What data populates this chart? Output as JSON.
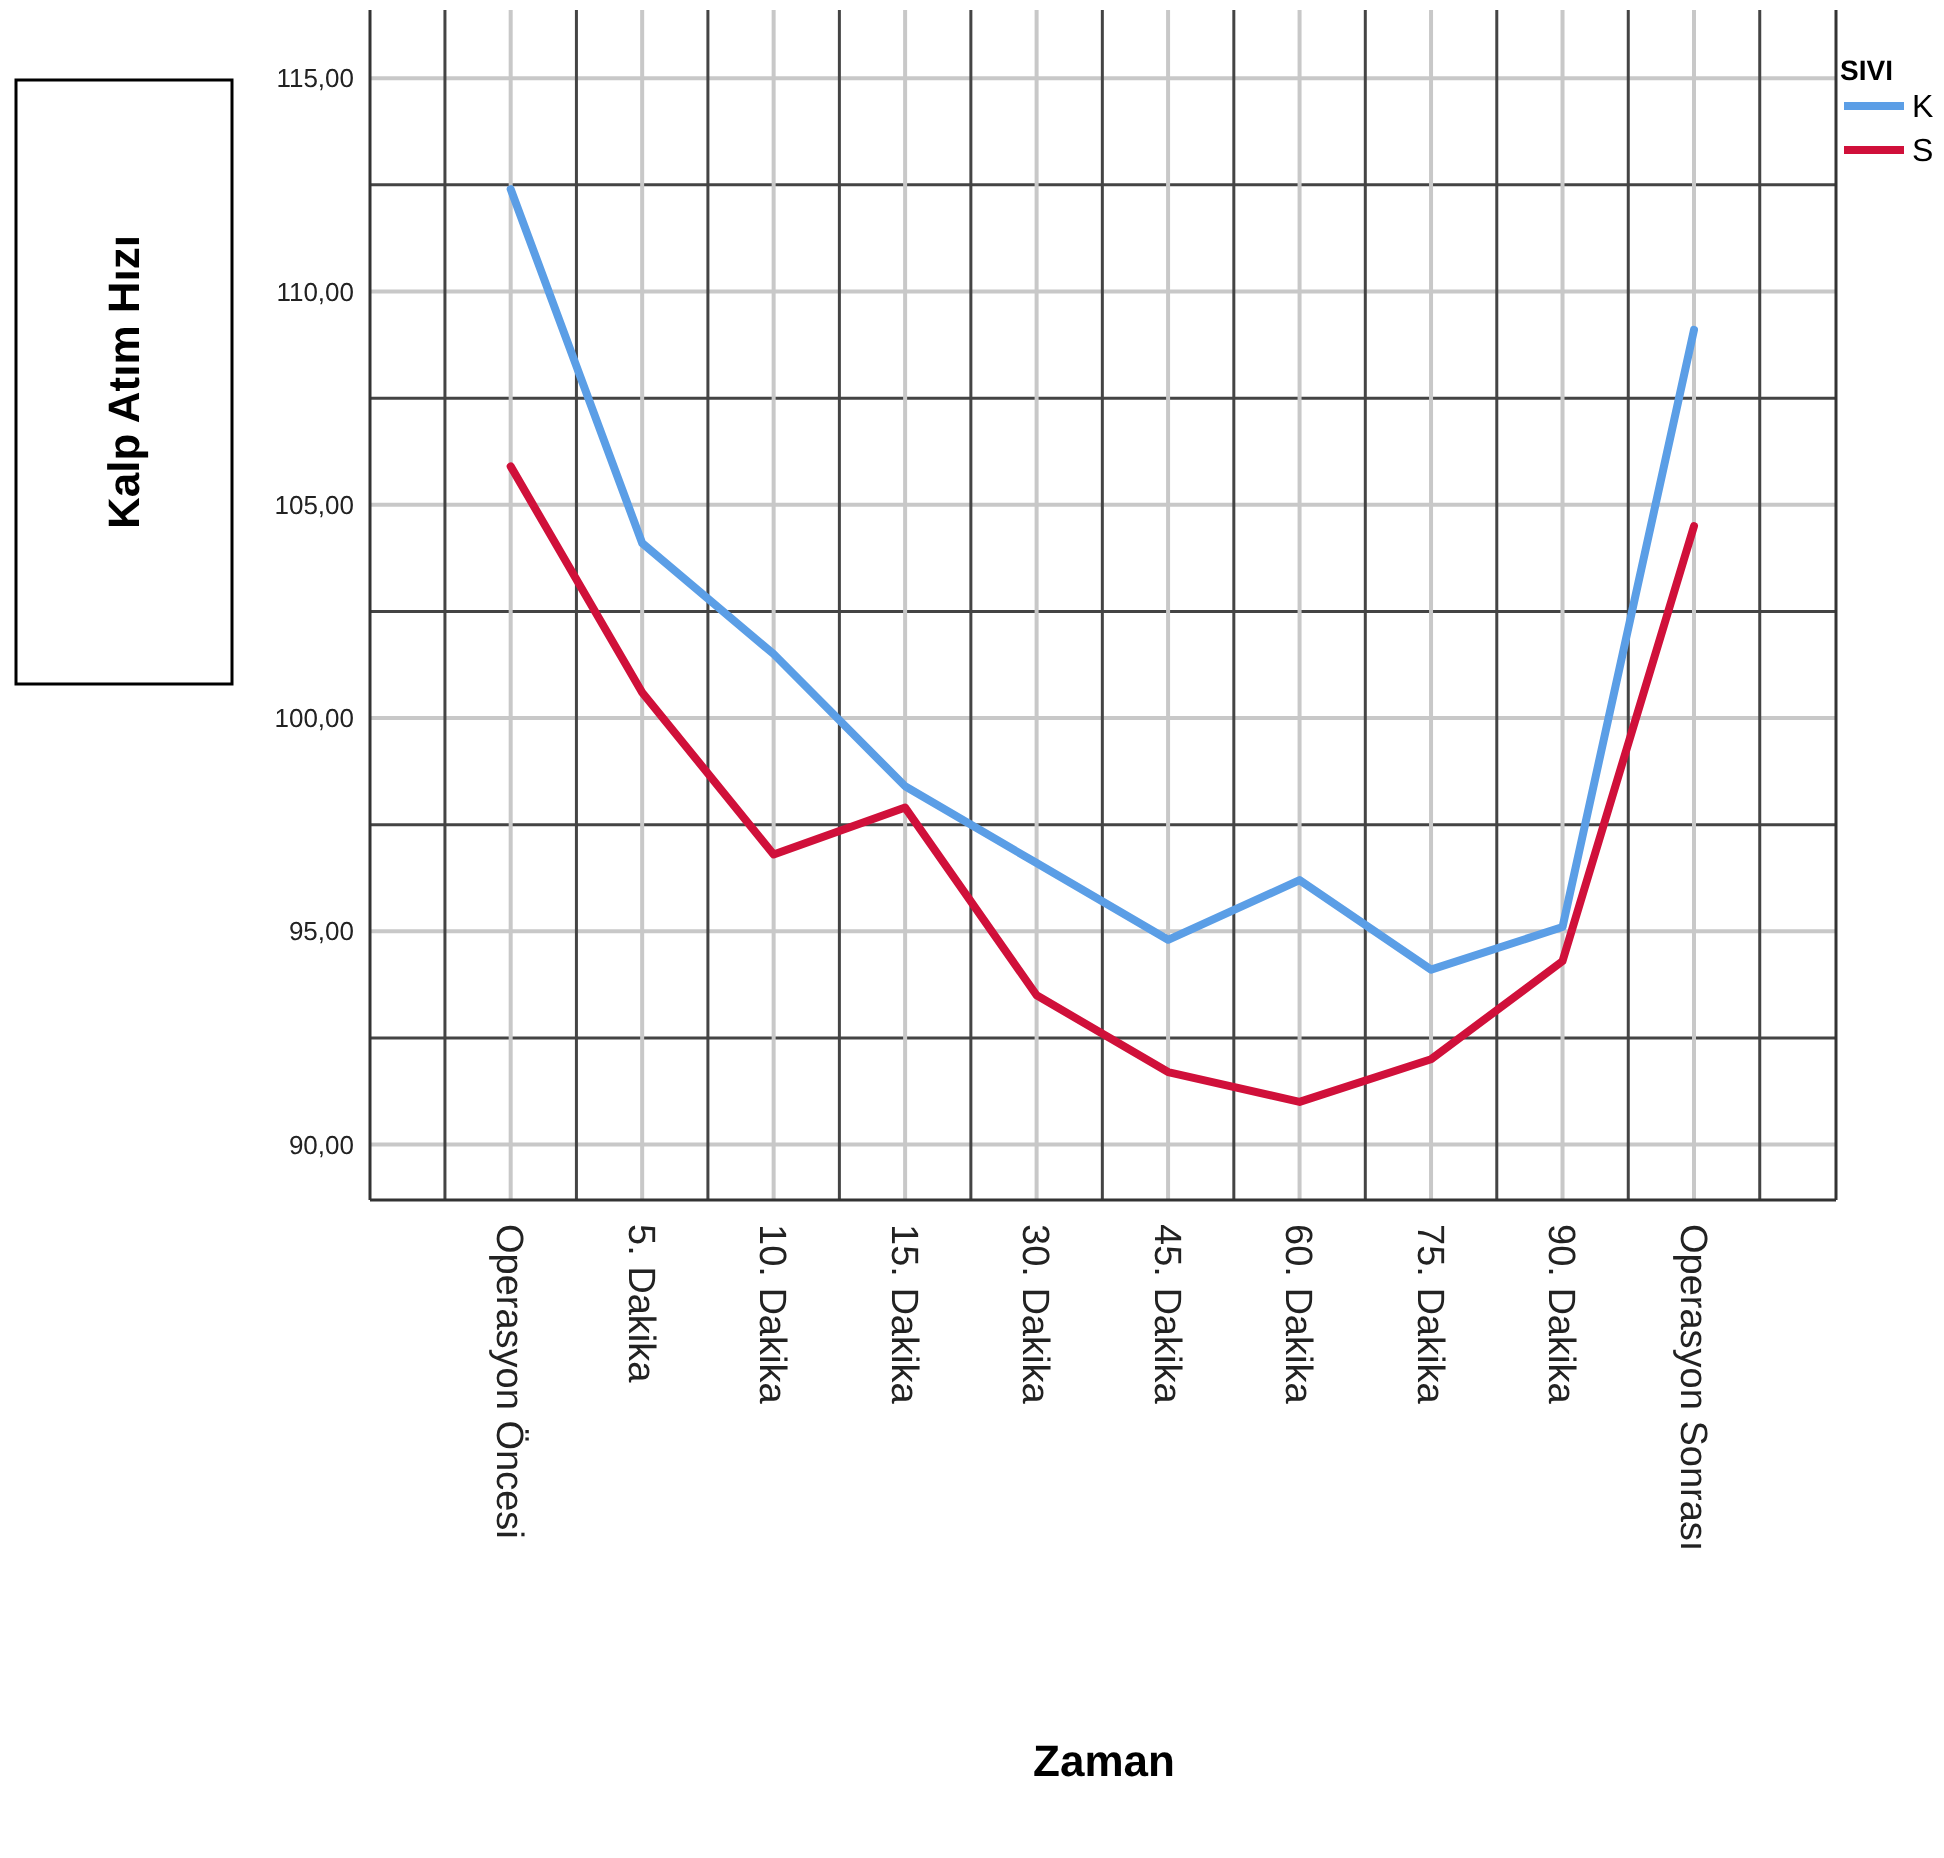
{
  "chart_data": {
    "type": "line",
    "xlabel": "Zaman",
    "ylabel": "Kalp Atım Hızı",
    "legend_title": "SIVI",
    "legend": "top right",
    "grid": true,
    "categories": [
      "Operasyon Öncesi",
      "5. Dakika",
      "10. Dakika",
      "15. Dakika",
      "30. Dakika",
      "45. Dakika",
      "60. Dakika",
      "75. Dakika",
      "90. Dakika",
      "Operasyon Sonrası"
    ],
    "ylim": [
      88.7,
      116.6
    ],
    "yticks": [
      {
        "value": 90,
        "label": "90,00"
      },
      {
        "value": 95,
        "label": "95,00"
      },
      {
        "value": 100,
        "label": "100,00"
      },
      {
        "value": 105,
        "label": "105,00"
      },
      {
        "value": 110,
        "label": "110,00"
      },
      {
        "value": 115,
        "label": "115,00"
      }
    ],
    "series": [
      {
        "name": "K",
        "color": "#5b9ee6",
        "values": [
          112.4,
          104.1,
          101.5,
          98.4,
          96.6,
          94.8,
          96.2,
          94.1,
          95.1,
          109.1
        ]
      },
      {
        "name": "S",
        "color": "#d0103a",
        "values": [
          105.9,
          100.6,
          96.8,
          97.9,
          93.5,
          91.7,
          91.0,
          92.0,
          94.3,
          104.5
        ]
      }
    ]
  }
}
